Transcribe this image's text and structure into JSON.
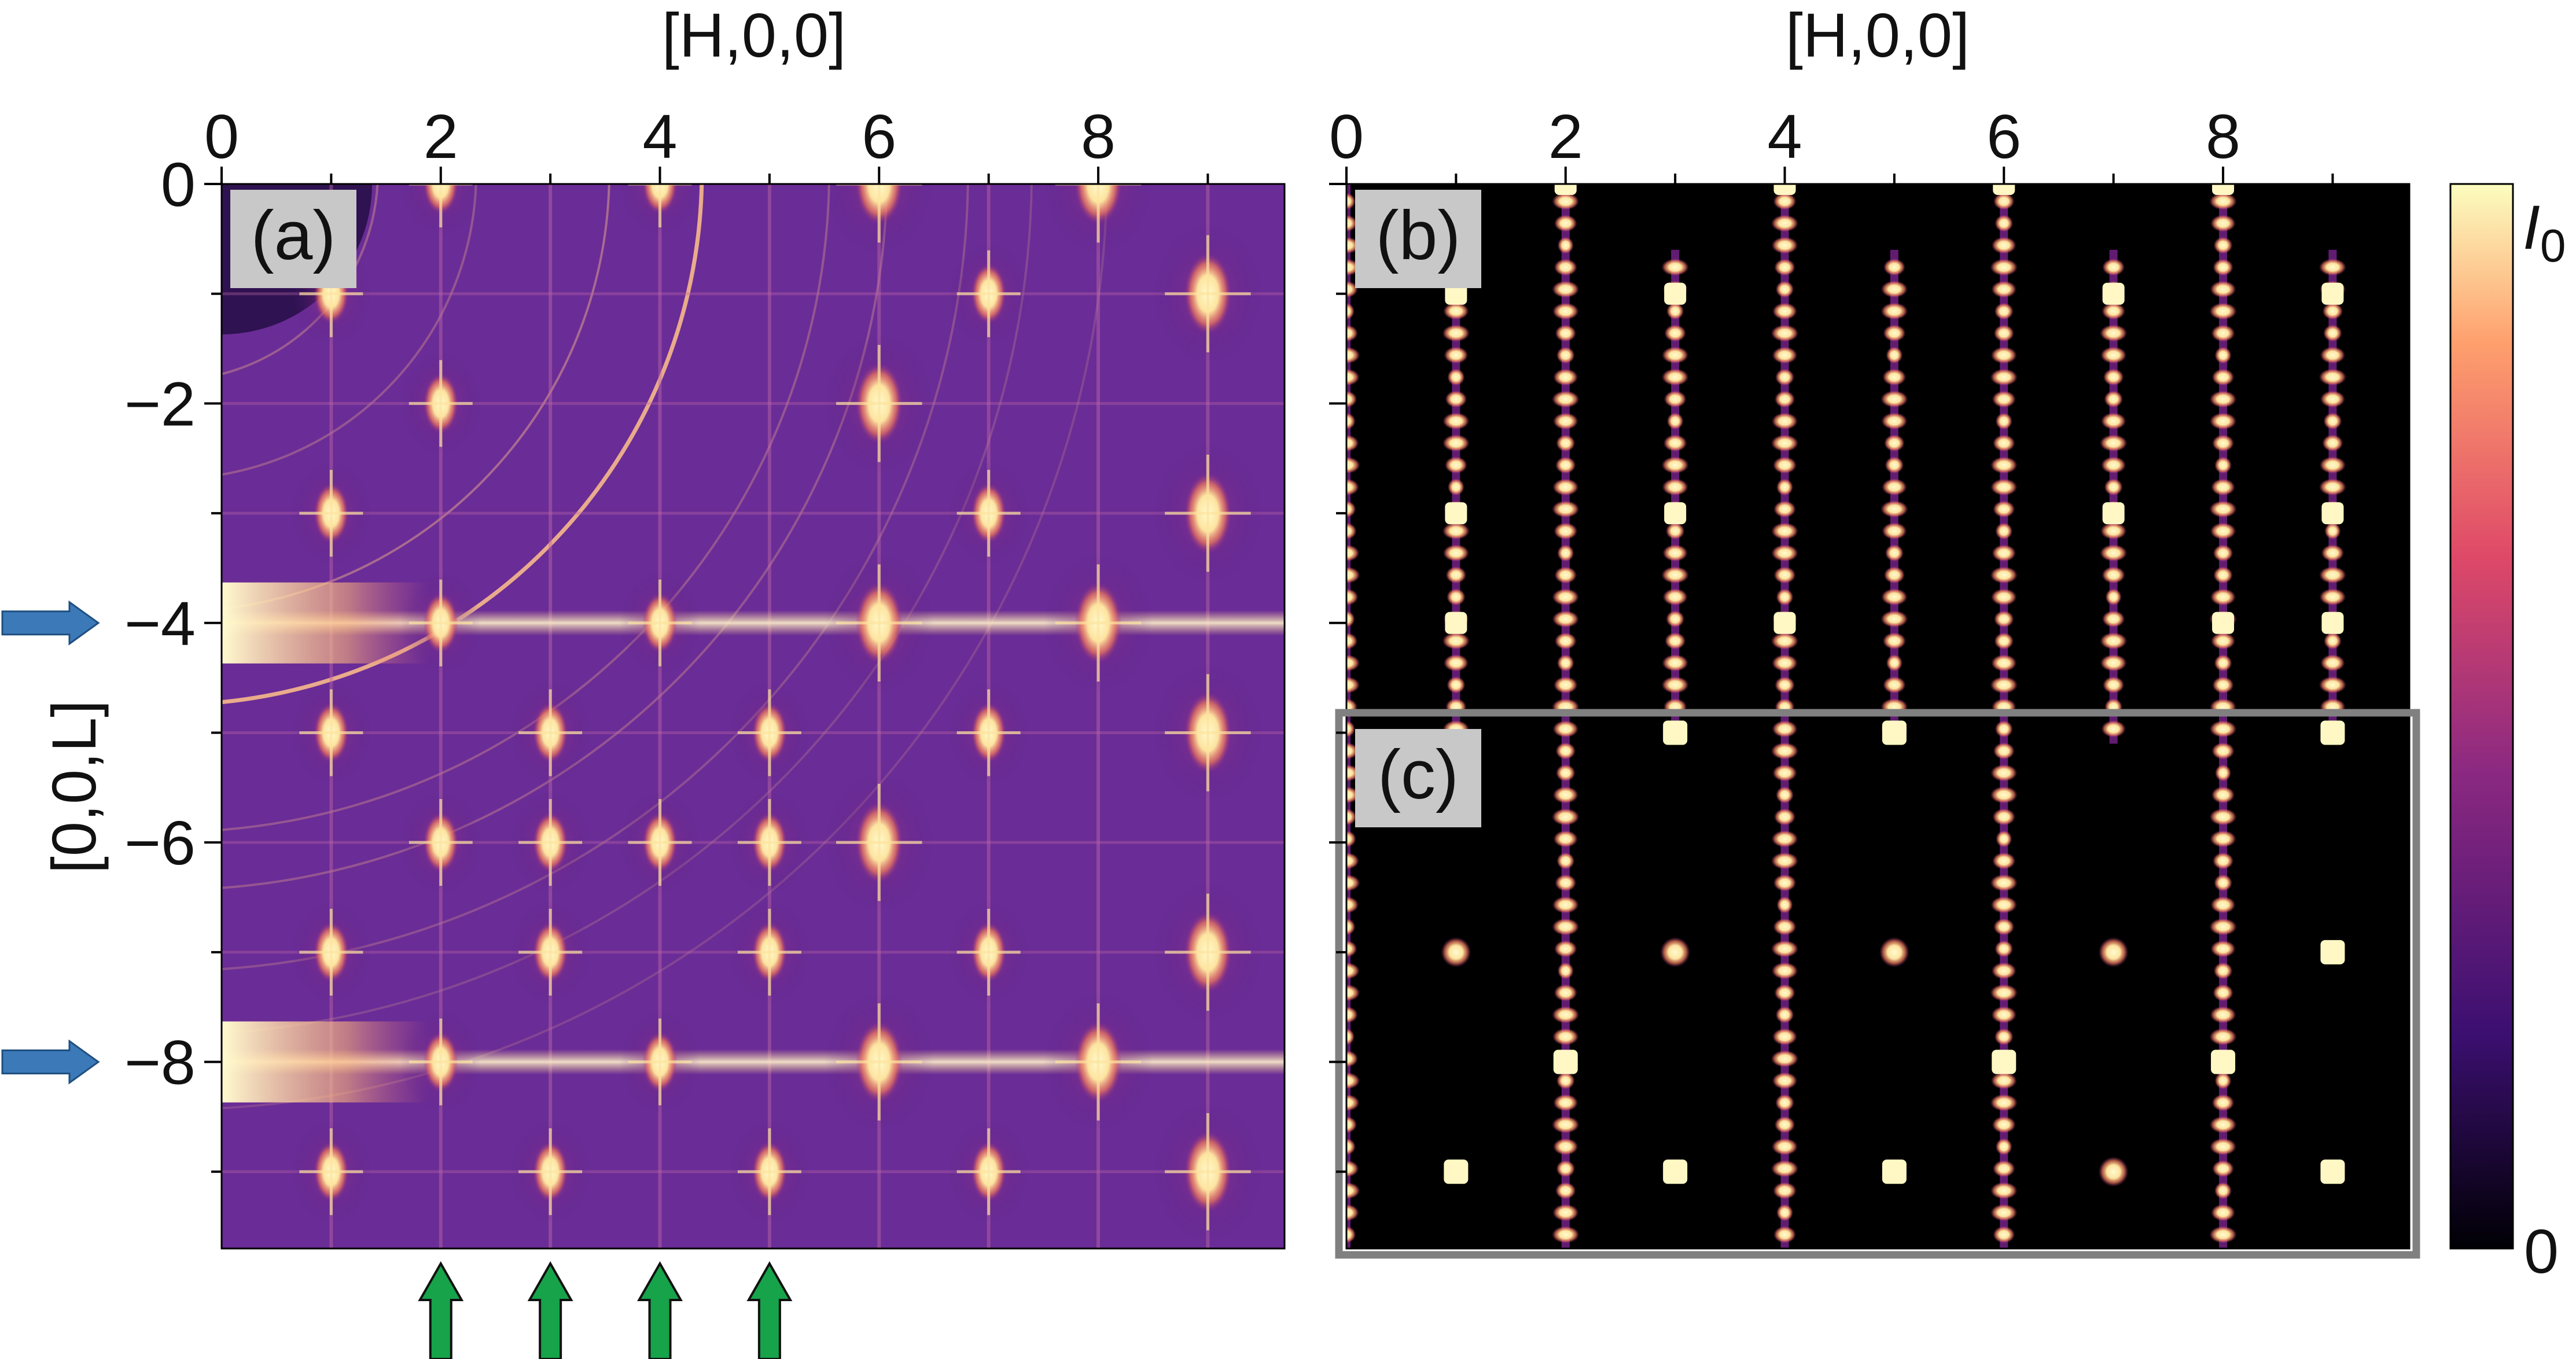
{
  "colors": {
    "colormap": [
      "#000004",
      "#3b0f70",
      "#8c2981",
      "#de4968",
      "#fe9f6d",
      "#fcfdbf"
    ],
    "panel_a_background": "#6a2c96",
    "highlight_box": "#808080",
    "blue_arrow": "#3c79b8",
    "green_arrow": "#16a34a"
  },
  "chart_data": [
    {
      "panel": "(a)",
      "type": "heatmap",
      "xlabel": "[H,0,0]",
      "ylabel": "[0,0,L]",
      "xlim": [
        0,
        9.7
      ],
      "ylim": [
        -9.7,
        0
      ],
      "x_ticks": [
        0,
        2,
        4,
        6,
        8
      ],
      "y_ticks": [
        0,
        -2,
        -4,
        -6,
        -8
      ],
      "rows": [
        {
          "L": 0,
          "peaks": [
            2,
            4,
            6,
            8
          ]
        },
        {
          "L": -1,
          "peaks": [
            1,
            7,
            9
          ]
        },
        {
          "L": -2,
          "peaks": [
            2,
            6
          ]
        },
        {
          "L": -3,
          "peaks": [
            1,
            7,
            9
          ]
        },
        {
          "L": -4,
          "peaks": [
            2,
            4,
            6,
            8
          ]
        },
        {
          "L": -5,
          "peaks": [
            1,
            3,
            5,
            7,
            9
          ]
        },
        {
          "L": -6,
          "peaks": [
            2,
            3,
            4,
            5,
            6
          ]
        },
        {
          "L": -7,
          "peaks": [
            1,
            3,
            5,
            7,
            9
          ]
        },
        {
          "L": -8,
          "peaks": [
            2,
            4,
            6,
            8
          ]
        },
        {
          "L": -9,
          "peaks": [
            1,
            3,
            5,
            7,
            9
          ]
        }
      ],
      "streak_rows": [
        -4,
        -8
      ],
      "marked_rows": [
        -4,
        -8
      ],
      "marked_columns": [
        2,
        3,
        4,
        5
      ]
    },
    {
      "panel": "(b)",
      "type": "heatmap",
      "xlabel": "[H,0,0]",
      "xlim": [
        0,
        9.7
      ],
      "ylim": [
        -9.7,
        0
      ],
      "x_ticks": [
        0,
        2,
        4,
        6,
        8
      ],
      "columns": [
        0,
        1,
        2,
        3,
        4,
        5,
        6,
        7,
        8,
        9
      ],
      "bright_points": [
        [
          1,
          -1
        ],
        [
          3,
          -1
        ],
        [
          7,
          -1
        ],
        [
          9,
          -1
        ],
        [
          2,
          0
        ],
        [
          4,
          0
        ],
        [
          6,
          0
        ],
        [
          8,
          0
        ],
        [
          1,
          -3
        ],
        [
          3,
          -3
        ],
        [
          7,
          -3
        ],
        [
          9,
          -3
        ],
        [
          1,
          -4
        ],
        [
          4,
          -4
        ],
        [
          8,
          -4
        ],
        [
          9,
          -4
        ]
      ]
    },
    {
      "panel": "(c)",
      "type": "heatmap",
      "columns": [
        0,
        2,
        4,
        6,
        8
      ],
      "bright_points": [
        [
          3,
          -5
        ],
        [
          5,
          -5
        ],
        [
          9,
          -5
        ],
        [
          2,
          -8
        ],
        [
          6,
          -8
        ],
        [
          8,
          -8
        ],
        [
          9,
          -7
        ],
        [
          1,
          -9
        ],
        [
          3,
          -9
        ],
        [
          5,
          -9
        ],
        [
          9,
          -9
        ]
      ],
      "small_points": [
        [
          1,
          -7
        ],
        [
          3,
          -7
        ],
        [
          5,
          -7
        ],
        [
          7,
          -7
        ],
        [
          7,
          -9
        ]
      ]
    },
    {
      "type": "colorbar",
      "min_label": "0",
      "max_label": "I",
      "max_label_sub": "0"
    }
  ]
}
